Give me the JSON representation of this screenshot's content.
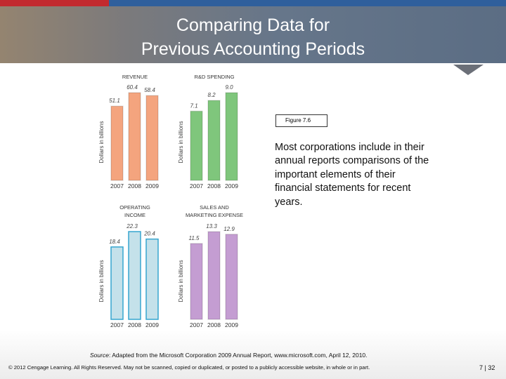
{
  "slide": {
    "title": [
      "Comparing Data for",
      "Previous Accounting Periods"
    ],
    "figure_label": "Figure 7.6",
    "body": "Most corporations include in their annual reports comparisons of the important elements of their financial statements for recent years.",
    "source_label": "Source",
    "source": ": Adapted from the Microsoft Corporation 2009 Annual Report, www.microsoft.com, April 12, 2010.",
    "copyright": "© 2012 Cengage Learning. All Rights Reserved. May not be scanned, copied or duplicated, or posted to a publicly accessible website, in whole or in part.",
    "page": "7 | 32"
  },
  "chart_data": [
    {
      "type": "bar",
      "title": [
        "REVENUE"
      ],
      "y_label": "Dollars in billions",
      "categories": [
        "2007",
        "2008",
        "2009"
      ],
      "values": [
        51.1,
        60.4,
        58.4
      ],
      "color": "#f4a47e"
    },
    {
      "type": "bar",
      "title": [
        "R&D SPENDING"
      ],
      "y_label": "Dollars in billions",
      "categories": [
        "2007",
        "2008",
        "2009"
      ],
      "values": [
        7.1,
        8.2,
        9.0
      ],
      "value_labels": [
        "7.1",
        "8.2",
        "9.0"
      ],
      "color": "#7fc67c"
    },
    {
      "type": "bar",
      "title": [
        "OPERATING",
        "INCOME"
      ],
      "y_label": "Dollars in billions",
      "categories": [
        "2007",
        "2008",
        "2009"
      ],
      "values": [
        18.4,
        22.3,
        20.4
      ],
      "color": "#c4e1ea"
    },
    {
      "type": "bar",
      "title": [
        "SALES AND",
        "MARKETING EXPENSE"
      ],
      "y_label": "Dollars in billions",
      "categories": [
        "2007",
        "2008",
        "2009"
      ],
      "values": [
        11.5,
        13.3,
        12.9
      ],
      "color": "#c49dd2"
    }
  ]
}
